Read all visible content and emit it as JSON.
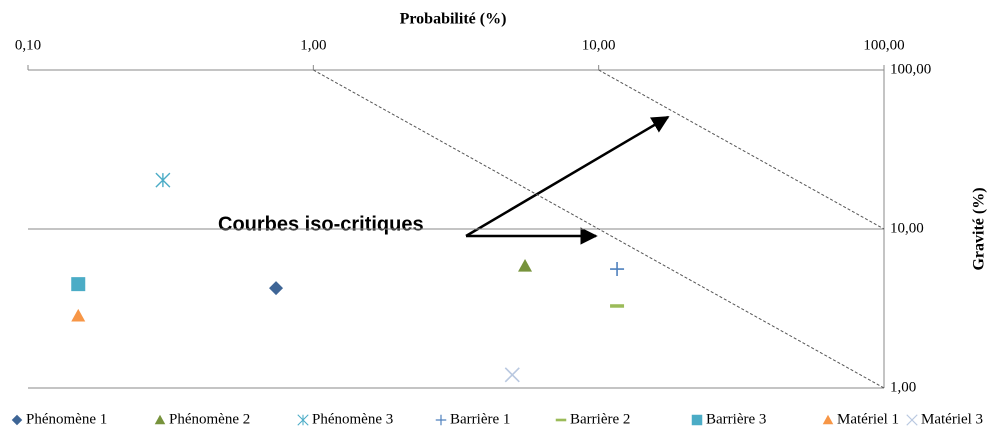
{
  "chart_data": {
    "type": "scatter",
    "xlabel": "Probabilité (%)",
    "ylabel": "Gravité (%)",
    "xscale": "log",
    "yscale": "log",
    "xlim": [
      0.1,
      100
    ],
    "ylim": [
      1,
      100
    ],
    "xticks": [
      {
        "value": 0.1,
        "label": "0,10"
      },
      {
        "value": 1,
        "label": "1,00"
      },
      {
        "value": 10,
        "label": "10,00"
      },
      {
        "value": 100,
        "label": "100,00"
      }
    ],
    "yticks": [
      {
        "value": 1,
        "label": "1,00"
      },
      {
        "value": 10,
        "label": "10,00"
      },
      {
        "value": 100,
        "label": "100,00"
      }
    ],
    "grid": true,
    "legend": "bottom",
    "annotation": "Courbes iso-critiques",
    "reference_lines": [
      {
        "x": [
          1,
          100
        ],
        "y": [
          100,
          1
        ]
      },
      {
        "x": [
          10,
          100
        ],
        "y": [
          100,
          10
        ]
      }
    ],
    "series": [
      {
        "name": "Phénomène 1",
        "color": "#3e6596",
        "marker": "diamond",
        "x": [
          0.74
        ],
        "values": [
          4.25
        ]
      },
      {
        "name": "Phénomène 2",
        "color": "#77933c",
        "marker": "triangle",
        "x": [
          5.52
        ],
        "values": [
          5.85
        ]
      },
      {
        "name": "Phénomène 3",
        "color": "#4bacc6",
        "marker": "star",
        "x": [
          0.297
        ],
        "values": [
          20.3
        ]
      },
      {
        "name": "Barrière 1",
        "color": "#4f81bd",
        "marker": "plus",
        "x": [
          11.6
        ],
        "values": [
          5.6
        ]
      },
      {
        "name": "Barrière 2",
        "color": "#9bbb59",
        "marker": "dash",
        "x": [
          11.6
        ],
        "values": [
          3.28
        ]
      },
      {
        "name": "Barrière 3",
        "color": "#4bacc6",
        "marker": "square",
        "x": [
          0.15
        ],
        "values": [
          4.5
        ]
      },
      {
        "name": "Matériel 1",
        "color": "#f79646",
        "marker": "triangle",
        "x": [
          0.15
        ],
        "values": [
          2.84
        ]
      },
      {
        "name": "Matériel 3",
        "color": "#b9c8e0",
        "marker": "x",
        "x": [
          4.98
        ],
        "values": [
          1.21
        ]
      }
    ]
  }
}
